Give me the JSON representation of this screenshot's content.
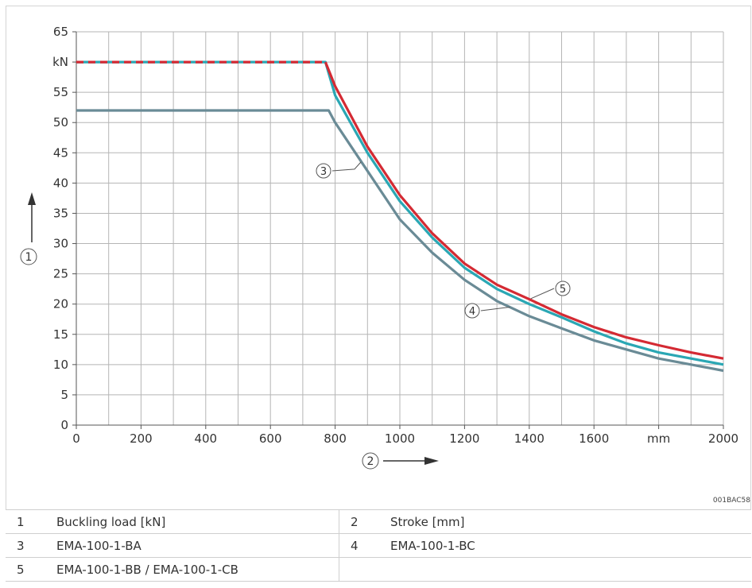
{
  "chart_data": {
    "type": "line",
    "x_axis": {
      "range": [
        0,
        2000
      ],
      "ticks": [
        "0",
        "200",
        "400",
        "600",
        "800",
        "1000",
        "1200",
        "1400",
        "1600",
        "mm",
        "2000"
      ],
      "tick_values": [
        0,
        200,
        400,
        600,
        800,
        1000,
        1200,
        1400,
        1600,
        1800,
        2000
      ],
      "marker": "2"
    },
    "y_axis": {
      "range": [
        0,
        65
      ],
      "ticks": [
        "0",
        "5",
        "10",
        "15",
        "20",
        "25",
        "30",
        "35",
        "40",
        "45",
        "50",
        "55",
        "kN",
        "65"
      ],
      "tick_values": [
        0,
        5,
        10,
        15,
        20,
        25,
        30,
        35,
        40,
        45,
        50,
        55,
        60,
        65
      ],
      "marker": "1"
    },
    "grid": "on",
    "series": [
      {
        "label": "3",
        "color": "#6a8b96",
        "style": "solid",
        "points": [
          [
            0,
            52
          ],
          [
            780,
            52
          ],
          [
            800,
            50
          ],
          [
            900,
            42
          ],
          [
            1000,
            34
          ],
          [
            1100,
            28.5
          ],
          [
            1200,
            24
          ],
          [
            1300,
            20.5
          ],
          [
            1400,
            18
          ],
          [
            1500,
            16
          ],
          [
            1600,
            14
          ],
          [
            1700,
            12.5
          ],
          [
            1800,
            11
          ],
          [
            1900,
            10
          ],
          [
            2000,
            9
          ]
        ]
      },
      {
        "label": "4",
        "color": "#2aa7b4",
        "style": "solid",
        "points": [
          [
            0,
            60
          ],
          [
            770,
            60
          ],
          [
            800,
            54.5
          ],
          [
            900,
            45
          ],
          [
            1000,
            37
          ],
          [
            1100,
            31
          ],
          [
            1200,
            26
          ],
          [
            1300,
            22.5
          ],
          [
            1400,
            20
          ],
          [
            1500,
            17.8
          ],
          [
            1600,
            15.5
          ],
          [
            1700,
            13.5
          ],
          [
            1800,
            12
          ],
          [
            1900,
            11
          ],
          [
            2000,
            10
          ]
        ]
      },
      {
        "label": "5",
        "color": "#d42a33",
        "style": "dashed over flat section, solid after",
        "points": [
          [
            0,
            60
          ],
          [
            770,
            60
          ],
          [
            800,
            56
          ],
          [
            900,
            46
          ],
          [
            1000,
            38
          ],
          [
            1100,
            31.7
          ],
          [
            1200,
            26.7
          ],
          [
            1300,
            23.2
          ],
          [
            1400,
            20.8
          ],
          [
            1500,
            18.3
          ],
          [
            1600,
            16.2
          ],
          [
            1700,
            14.5
          ],
          [
            1800,
            13.2
          ],
          [
            1900,
            12
          ],
          [
            2000,
            11
          ]
        ]
      }
    ]
  },
  "reference_code": "001BAC58",
  "legend_rows": [
    {
      "n1": "1",
      "t1": "Buckling load [kN]",
      "n2": "2",
      "t2": "Stroke [mm]"
    },
    {
      "n1": "3",
      "t1": "EMA-100-1-BA",
      "n2": "4",
      "t2": "EMA-100-1-BC"
    },
    {
      "n1": "5",
      "t1": "EMA-100-1-BB / EMA-100-1-CB",
      "n2": "",
      "t2": ""
    }
  ]
}
